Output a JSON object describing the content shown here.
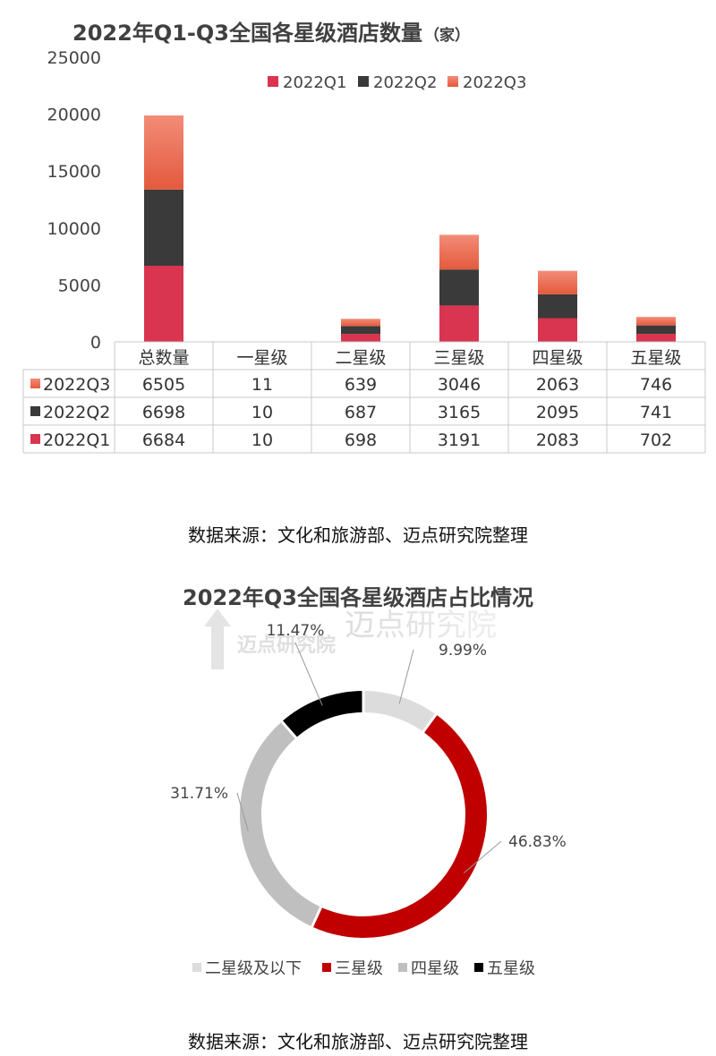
{
  "colors": {
    "q1": "#d93450",
    "q2": "#3a3a3a",
    "q3_top": "#f28c77",
    "q3_bottom": "#e45a3d",
    "grid": "#c8c8c8",
    "donut_below2": "#dcdcdc",
    "donut_3star": "#c00000",
    "donut_4star": "#bfbfbf",
    "donut_5star": "#000000"
  },
  "chart_data": [
    {
      "type": "bar",
      "stacked": true,
      "title": "2022年Q1-Q3全国各星级酒店数量",
      "title_unit": "（家）",
      "categories": [
        "总数量",
        "一星级",
        "二星级",
        "三星级",
        "四星级",
        "五星级"
      ],
      "series": [
        {
          "name": "2022Q1",
          "values": [
            6684,
            10,
            698,
            3191,
            2083,
            702
          ]
        },
        {
          "name": "2022Q2",
          "values": [
            6698,
            10,
            687,
            3165,
            2095,
            741
          ]
        },
        {
          "name": "2022Q3",
          "values": [
            6505,
            11,
            639,
            3046,
            2063,
            746
          ]
        }
      ],
      "yticks": [
        "0",
        "5000",
        "10000",
        "15000",
        "20000",
        "25000"
      ],
      "ylim": [
        0,
        25000
      ],
      "legend_position": "top",
      "data_table": true
    },
    {
      "type": "pie",
      "donut": true,
      "title": "2022年Q3全国各星级酒店占比情况",
      "labels": [
        "二星级及以下",
        "三星级",
        "四星级",
        "五星级"
      ],
      "values": [
        9.99,
        46.83,
        31.71,
        11.47
      ],
      "value_labels": [
        "9.99%",
        "46.83%",
        "31.71%",
        "11.47%"
      ],
      "legend_position": "bottom"
    }
  ],
  "source_text": "数据来源：文化和旅游部、迈点研究院整理",
  "watermark": "迈点研究院"
}
